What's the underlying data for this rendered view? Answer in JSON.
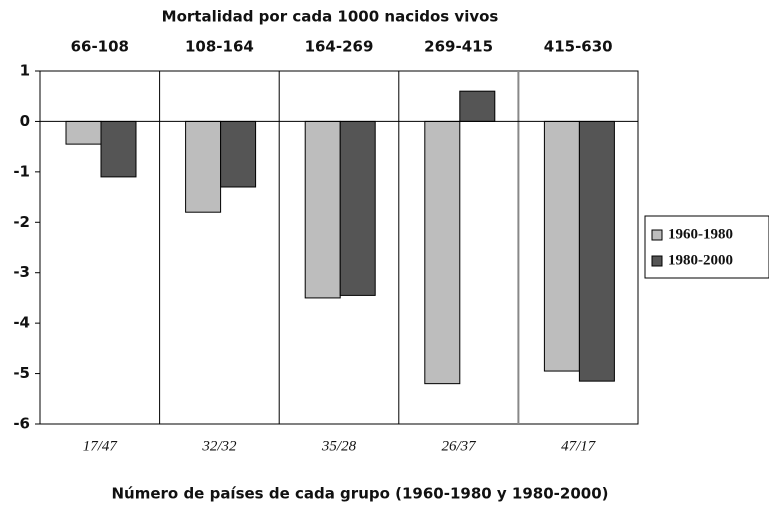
{
  "chart_data": {
    "type": "bar",
    "title": "Mortalidad por cada 1000 nacidos vivos",
    "categories": [
      "66-108",
      "108-164",
      "164-269",
      "269-415",
      "415-630"
    ],
    "group_labels": [
      "17/47",
      "32/32",
      "35/28",
      "26/37",
      "47/17"
    ],
    "x_label": "Número de países de cada grupo (1960-1980 y 1980-2000)",
    "series": [
      {
        "name": "1960-1980",
        "color": "#bdbdbd",
        "values": [
          -0.45,
          -1.8,
          -3.5,
          -5.2,
          -4.95
        ]
      },
      {
        "name": "1980-2000",
        "color": "#555555",
        "values": [
          -1.1,
          -1.3,
          -3.45,
          0.6,
          -5.15
        ]
      }
    ],
    "ylim": [
      -6,
      1
    ],
    "yticks": [
      1,
      0,
      -1,
      -2,
      -3,
      -4,
      -5,
      -6
    ],
    "legend": "right"
  }
}
